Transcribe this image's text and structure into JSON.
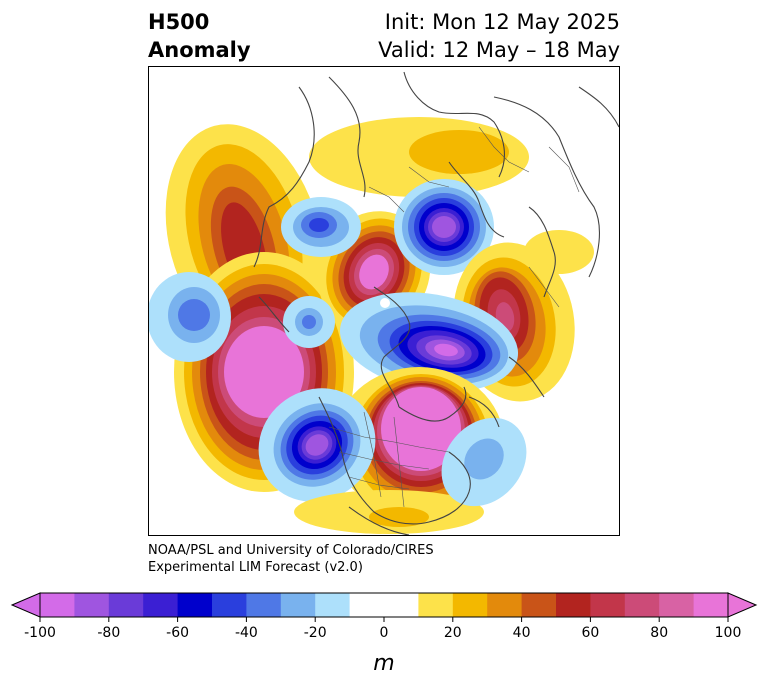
{
  "title": {
    "left_line1": "H500",
    "left_line2": "Anomaly",
    "right_line1": "Init: Mon 12 May 2025",
    "right_line2": "Valid: 12 May – 18 May"
  },
  "credit": {
    "line1": "NOAA/PSL and University of Colorado/CIRES",
    "line2": "Experimental LIM Forecast (v2.0)"
  },
  "colorbar": {
    "label": "m",
    "ticks": [
      "-100",
      "-80",
      "-60",
      "-40",
      "-20",
      "0",
      "20",
      "40",
      "60",
      "80",
      "100"
    ],
    "colors": [
      "#d36be8",
      "#9f55e0",
      "#6a3bd8",
      "#3b1fd3",
      "#0000cc",
      "#2a3fdd",
      "#4f78e6",
      "#79b2ee",
      "#ade0fb",
      "#ffffff",
      "#ffffff",
      "#fde24a",
      "#f3b800",
      "#e38a0c",
      "#c95418",
      "#b2241f",
      "#c2364a",
      "#cc4b78",
      "#d862a4",
      "#e874d8"
    ]
  },
  "colors": {
    "coastline": "#444444"
  }
}
